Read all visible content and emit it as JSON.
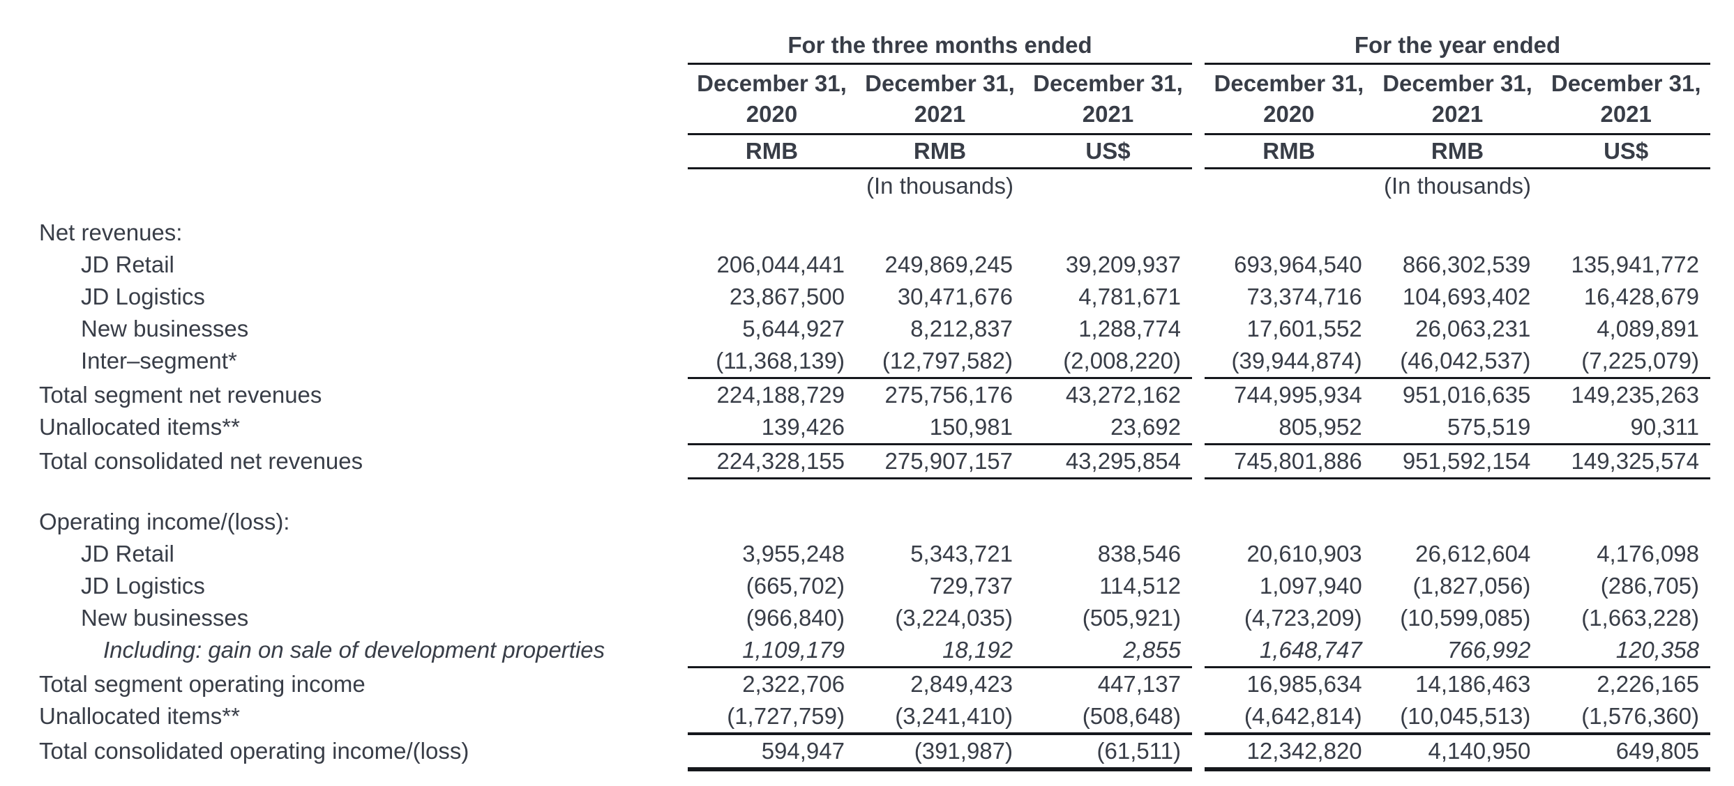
{
  "header": {
    "groups": [
      {
        "title": "For the three months ended",
        "cols": [
          {
            "l1": "December 31,",
            "l2": "2020",
            "cur": "RMB"
          },
          {
            "l1": "December 31,",
            "l2": "2021",
            "cur": "RMB"
          },
          {
            "l1": "December 31,",
            "l2": "2021",
            "cur": "US$"
          }
        ],
        "units": "(In thousands)"
      },
      {
        "title": "For the year ended",
        "cols": [
          {
            "l1": "December 31,",
            "l2": "2020",
            "cur": "RMB"
          },
          {
            "l1": "December 31,",
            "l2": "2021",
            "cur": "RMB"
          },
          {
            "l1": "December 31,",
            "l2": "2021",
            "cur": "US$"
          }
        ],
        "units": "(In thousands)"
      }
    ]
  },
  "sections": [
    {
      "heading": "Net revenues:",
      "rows": [
        {
          "label": "JD Retail",
          "v": [
            "206,044,441",
            "249,869,245",
            "39,209,937",
            "693,964,540",
            "866,302,539",
            "135,941,772"
          ]
        },
        {
          "label": "JD Logistics",
          "v": [
            "23,867,500",
            "30,471,676",
            "4,781,671",
            "73,374,716",
            "104,693,402",
            "16,428,679"
          ]
        },
        {
          "label": "New businesses",
          "v": [
            "5,644,927",
            "8,212,837",
            "1,288,774",
            "17,601,552",
            "26,063,231",
            "4,089,891"
          ]
        },
        {
          "label": "Inter–segment*",
          "v": [
            "(11,368,139)",
            "(12,797,582)",
            "(2,008,220)",
            "(39,944,874)",
            "(46,042,537)",
            "(7,225,079)"
          ]
        },
        {
          "label": "Total segment net revenues",
          "v": [
            "224,188,729",
            "275,756,176",
            "43,272,162",
            "744,995,934",
            "951,016,635",
            "149,235,263"
          ]
        },
        {
          "label": "Unallocated items**",
          "v": [
            "139,426",
            "150,981",
            "23,692",
            "805,952",
            "575,519",
            "90,311"
          ]
        },
        {
          "label": "Total consolidated net revenues",
          "v": [
            "224,328,155",
            "275,907,157",
            "43,295,854",
            "745,801,886",
            "951,592,154",
            "149,325,574"
          ]
        }
      ]
    },
    {
      "heading": "Operating income/(loss):",
      "rows": [
        {
          "label": "JD Retail",
          "v": [
            "3,955,248",
            "5,343,721",
            "838,546",
            "20,610,903",
            "26,612,604",
            "4,176,098"
          ]
        },
        {
          "label": "JD Logistics",
          "v": [
            "(665,702)",
            "729,737",
            "114,512",
            "1,097,940",
            "(1,827,056)",
            "(286,705)"
          ]
        },
        {
          "label": "New businesses",
          "v": [
            "(966,840)",
            "(3,224,035)",
            "(505,921)",
            "(4,723,209)",
            "(10,599,085)",
            "(1,663,228)"
          ]
        },
        {
          "label": "Including: gain on sale of development properties",
          "v": [
            "1,109,179",
            "18,192",
            "2,855",
            "1,648,747",
            "766,992",
            "120,358"
          ]
        },
        {
          "label": "Total segment operating income",
          "v": [
            "2,322,706",
            "2,849,423",
            "447,137",
            "16,985,634",
            "14,186,463",
            "2,226,165"
          ]
        },
        {
          "label": "Unallocated items**",
          "v": [
            "(1,727,759)",
            "(3,241,410)",
            "(508,648)",
            "(4,642,814)",
            "(10,045,513)",
            "(1,576,360)"
          ]
        },
        {
          "label": "Total consolidated operating income/(loss)",
          "v": [
            "594,947",
            "(391,987)",
            "(61,511)",
            "12,342,820",
            "4,140,950",
            "649,805"
          ]
        }
      ]
    }
  ]
}
